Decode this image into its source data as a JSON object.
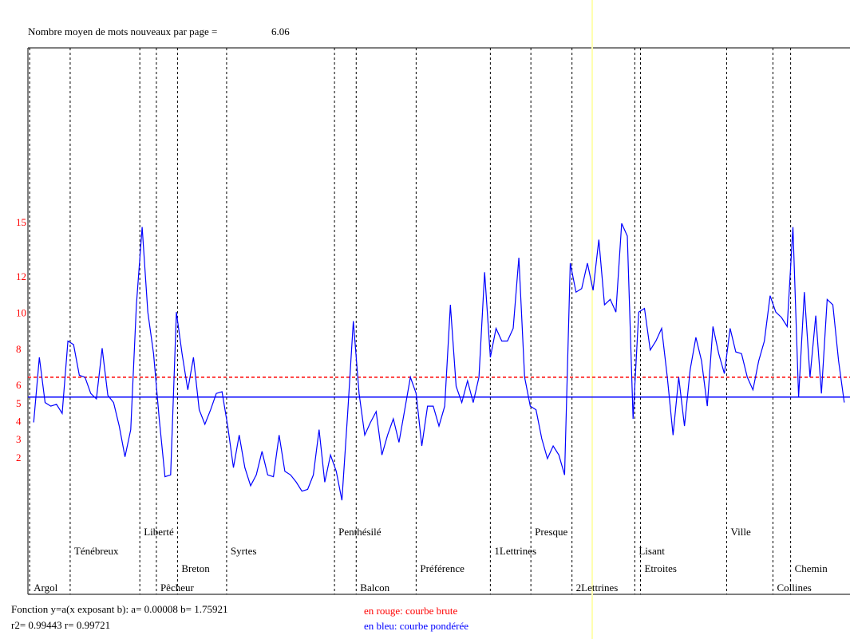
{
  "chart_data": {
    "type": "line",
    "title": "Nombre moyen de mots nouveaux par page =",
    "mean_value": "6.06",
    "xlim": [
      0,
      144
    ],
    "ylim": [
      -5.5,
      24.7
    ],
    "yticks": [
      2,
      3,
      4,
      5,
      6,
      8,
      10,
      12,
      15
    ],
    "tick_color": "#ff0000",
    "series": [
      {
        "name": "en bleu: courbe pondérée",
        "color": "#0000ff",
        "values": [
          4.0,
          7.6,
          5.1,
          4.9,
          5.0,
          4.5,
          8.5,
          8.3,
          6.6,
          6.5,
          5.6,
          5.3,
          8.1,
          5.5,
          5.1,
          3.8,
          2.1,
          3.6,
          10.5,
          14.8,
          10.1,
          7.8,
          4.2,
          1.0,
          1.1,
          10.1,
          7.8,
          5.8,
          7.6,
          4.7,
          3.9,
          4.7,
          5.6,
          5.7,
          3.8,
          1.5,
          3.3,
          1.5,
          0.5,
          1.1,
          2.4,
          1.1,
          1.0,
          3.3,
          1.3,
          1.1,
          0.7,
          0.2,
          0.3,
          1.1,
          3.6,
          0.7,
          2.2,
          1.3,
          -0.3,
          4.5,
          9.6,
          5.6,
          3.3,
          4.0,
          4.6,
          2.2,
          3.3,
          4.2,
          2.9,
          4.7,
          6.5,
          5.6,
          2.7,
          4.9,
          4.9,
          3.8,
          4.9,
          10.5,
          6.0,
          5.1,
          6.3,
          5.1,
          6.5,
          12.3,
          7.6,
          9.2,
          8.5,
          8.5,
          9.2,
          13.1,
          6.5,
          4.9,
          4.7,
          3.1,
          2.0,
          2.7,
          2.2,
          1.1,
          12.8,
          11.2,
          11.4,
          12.8,
          11.3,
          14.1,
          10.5,
          10.8,
          10.1,
          15.0,
          14.3,
          4.2,
          10.1,
          10.3,
          8.0,
          8.5,
          9.2,
          6.5,
          3.3,
          6.5,
          3.8,
          6.9,
          8.7,
          7.4,
          4.9,
          9.3,
          7.8,
          6.7,
          9.2,
          7.9,
          7.8,
          6.5,
          5.8,
          7.4,
          8.5,
          11.0,
          10.1,
          9.8,
          9.3,
          14.8,
          5.4,
          11.2,
          6.5,
          9.9,
          5.6,
          10.8,
          10.5,
          7.4,
          5.1
        ]
      }
    ],
    "reference_lines": [
      {
        "name": "en rouge: courbe brute",
        "color": "#ff0000",
        "value": 6.5,
        "dashed": true
      },
      {
        "name": "en bleu: courbe pondérée",
        "color": "#0000ff",
        "value": 5.4,
        "dashed": false
      }
    ],
    "sections": [
      {
        "label": "Argol",
        "x": 0.3
      },
      {
        "label": "Ténébreux",
        "x": 7.4
      },
      {
        "label": "Liberté",
        "x": 19.6
      },
      {
        "label": "Pêcheur",
        "x": 22.5
      },
      {
        "label": "Breton",
        "x": 26.2
      },
      {
        "label": "Syrtes",
        "x": 34.8
      },
      {
        "label": "Penthésilé",
        "x": 53.7
      },
      {
        "label": "Balcon",
        "x": 57.5
      },
      {
        "label": "Préférence",
        "x": 68.0
      },
      {
        "label": "1Lettrines",
        "x": 81.0
      },
      {
        "label": "Presque",
        "x": 88.1
      },
      {
        "label": "2Lettrines",
        "x": 95.3
      },
      {
        "label": "Lisant",
        "x": 106.3
      },
      {
        "label": "Etroites",
        "x": 107.3
      },
      {
        "label": "Ville",
        "x": 122.4
      },
      {
        "label": "Collines",
        "x": 130.5
      },
      {
        "label": "Chemin",
        "x": 133.6
      }
    ],
    "footer": {
      "function": "Fonction y=a(x exposant b): a= 0.00008  b= 1.75921",
      "fit": "r2= 0.99443  r= 0.99721"
    }
  }
}
